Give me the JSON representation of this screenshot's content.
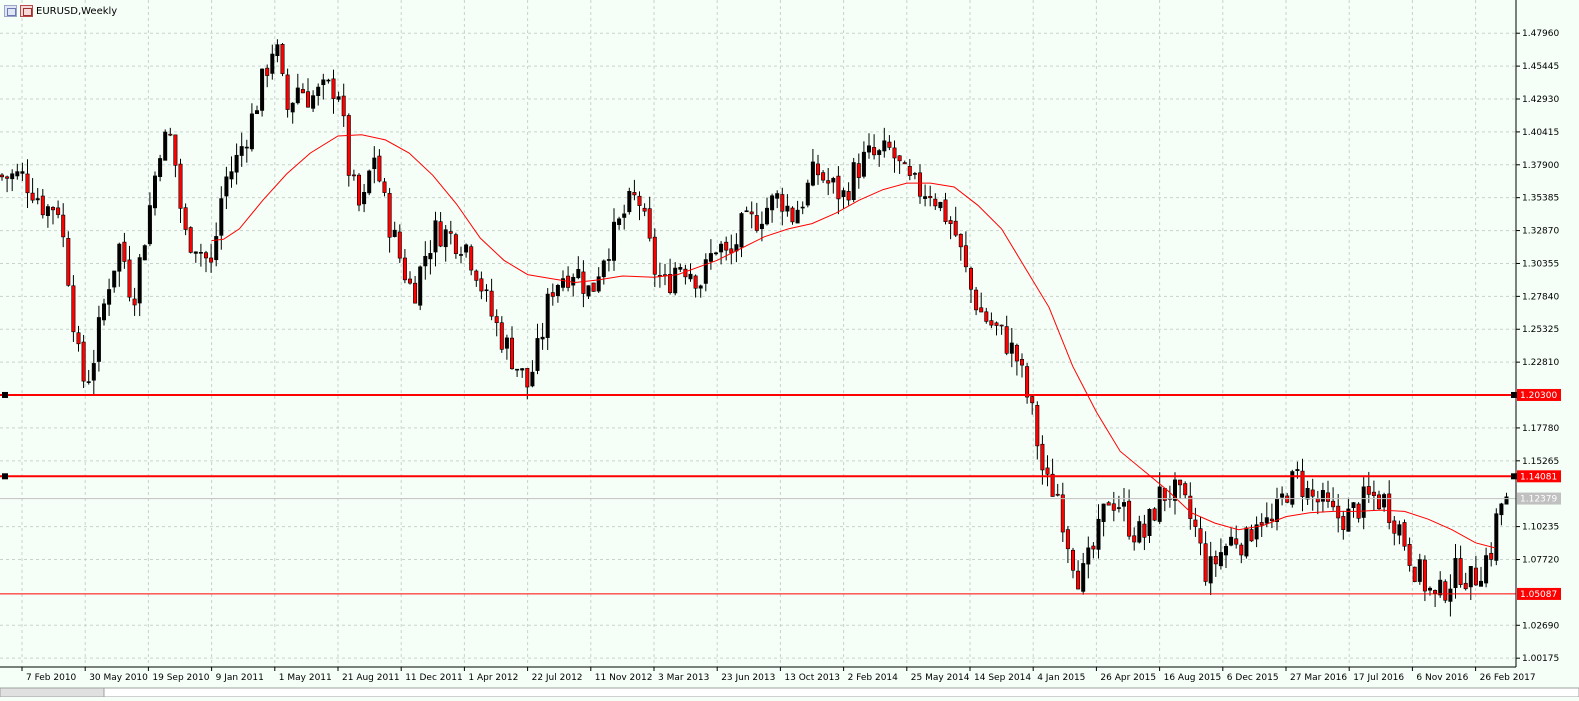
{
  "header": {
    "symbol_timeframe": "EURUSD,Weekly",
    "icons": [
      "chart-grid-icon",
      "chart-color-icon"
    ]
  },
  "chart_data": {
    "type": "candlestick",
    "title": "EURUSD,Weekly",
    "ylim": [
      0.995,
      1.505
    ],
    "y_ticks": [
      "1.47960",
      "1.45445",
      "1.42930",
      "1.40415",
      "1.37900",
      "1.35385",
      "1.32870",
      "1.30355",
      "1.27840",
      "1.25325",
      "1.22810",
      "1.20300",
      "1.17780",
      "1.15265",
      "1.14081",
      "1.12379",
      "1.10235",
      "1.07720",
      "1.05087",
      "1.02690",
      "1.00175"
    ],
    "x_ticks": [
      "7 Feb 2010",
      "30 May 2010",
      "19 Sep 2010",
      "9 Jan 2011",
      "1 May 2011",
      "21 Aug 2011",
      "11 Dec 2011",
      "1 Apr 2012",
      "22 Jul 2012",
      "11 Nov 2012",
      "3 Mar 2013",
      "23 Jun 2013",
      "13 Oct 2013",
      "2 Feb 2014",
      "25 May 2014",
      "14 Sep 2014",
      "4 Jan 2015",
      "26 Apr 2015",
      "16 Aug 2015",
      "6 Dec 2015",
      "27 Mar 2016",
      "17 Jul 2016",
      "6 Nov 2016",
      "26 Feb 2017"
    ],
    "horizontal_levels": [
      {
        "value": 1.203,
        "label": "1.20300",
        "color": "#ff0000",
        "selected": true
      },
      {
        "value": 1.14081,
        "label": "1.14081",
        "color": "#ff0000",
        "selected": true
      },
      {
        "value": 1.05087,
        "label": "1.05087",
        "color": "#ff0000",
        "selected": false
      }
    ],
    "current_price": {
      "value": 1.12379,
      "label": "1.12379",
      "color": "#c0c0c0"
    },
    "moving_average": {
      "color": "#ff0000",
      "points": [
        [
          "9 Jan 2011",
          1.321
        ],
        [
          "30 Jan 2011",
          1.322
        ],
        [
          "27 Feb 2011",
          1.33
        ],
        [
          "10 Apr 2011",
          1.352
        ],
        [
          "22 May 2011",
          1.372
        ],
        [
          "3 Jul 2011",
          1.388
        ],
        [
          "21 Aug 2011",
          1.401
        ],
        [
          "2 Oct 2011",
          1.402
        ],
        [
          "13 Nov 2011",
          1.398
        ],
        [
          "25 Dec 2011",
          1.388
        ],
        [
          "5 Feb 2012",
          1.371
        ],
        [
          "18 Mar 2012",
          1.349
        ],
        [
          "29 Apr 2012",
          1.323
        ],
        [
          "10 Jun 2012",
          1.306
        ],
        [
          "22 Jul 2012",
          1.295
        ],
        [
          "2 Sep 2012",
          1.292
        ],
        [
          "14 Oct 2012",
          1.289
        ],
        [
          "25 Nov 2012",
          1.291
        ],
        [
          "6 Jan 2013",
          1.294
        ],
        [
          "3 Mar 2013",
          1.293
        ],
        [
          "14 Apr 2013",
          1.295
        ],
        [
          "23 Jun 2013",
          1.306
        ],
        [
          "4 Aug 2013",
          1.315
        ],
        [
          "15 Sep 2013",
          1.324
        ],
        [
          "27 Oct 2013",
          1.33
        ],
        [
          "8 Dec 2013",
          1.334
        ],
        [
          "19 Jan 2014",
          1.342
        ],
        [
          "2 Mar 2014",
          1.352
        ],
        [
          "13 Apr 2014",
          1.36
        ],
        [
          "25 May 2014",
          1.365
        ],
        [
          "6 Jul 2014",
          1.365
        ],
        [
          "17 Aug 2014",
          1.362
        ],
        [
          "28 Sep 2014",
          1.348
        ],
        [
          "9 Nov 2014",
          1.33
        ],
        [
          "21 Dec 2014",
          1.3
        ],
        [
          "1 Feb 2015",
          1.27
        ],
        [
          "15 Mar 2015",
          1.225
        ],
        [
          "26 Apr 2015",
          1.19
        ],
        [
          "7 Jun 2015",
          1.16
        ],
        [
          "19 Jul 2015",
          1.145
        ],
        [
          "30 Aug 2015",
          1.13
        ],
        [
          "11 Oct 2015",
          1.113
        ],
        [
          "22 Nov 2015",
          1.105
        ],
        [
          "3 Jan 2016",
          1.1
        ],
        [
          "14 Feb 2016",
          1.103
        ],
        [
          "27 Mar 2016",
          1.11
        ],
        [
          "8 May 2016",
          1.113
        ],
        [
          "19 Jun 2016",
          1.114
        ],
        [
          "31 Jul 2016",
          1.114
        ],
        [
          "11 Sep 2016",
          1.115
        ],
        [
          "23 Oct 2016",
          1.114
        ],
        [
          "4 Dec 2016",
          1.108
        ],
        [
          "15 Jan 2017",
          1.1
        ],
        [
          "26 Feb 2017",
          1.09
        ],
        [
          "2 Apr 2017",
          1.086
        ]
      ]
    },
    "price_path": [
      [
        "7 Feb 2010",
        1.37
      ],
      [
        "28 Feb 2010",
        1.36
      ],
      [
        "21 Mar 2010",
        1.345
      ],
      [
        "11 Apr 2010",
        1.35
      ],
      [
        "2 May 2010",
        1.29
      ],
      [
        "16 May 2010",
        1.235
      ],
      [
        "30 May 2010",
        1.21
      ],
      [
        "13 Jun 2010",
        1.23
      ],
      [
        "27 Jun 2010",
        1.26
      ],
      [
        "11 Jul 2010",
        1.29
      ],
      [
        "1 Aug 2010",
        1.32
      ],
      [
        "22 Aug 2010",
        1.275
      ],
      [
        "19 Sep 2010",
        1.34
      ],
      [
        "10 Oct 2010",
        1.395
      ],
      [
        "31 Oct 2010",
        1.4
      ],
      [
        "21 Nov 2010",
        1.325
      ],
      [
        "12 Dec 2010",
        1.32
      ],
      [
        "9 Jan 2011",
        1.3
      ],
      [
        "30 Jan 2011",
        1.365
      ],
      [
        "20 Feb 2011",
        1.38
      ],
      [
        "20 Mar 2011",
        1.412
      ],
      [
        "1 May 2011",
        1.475
      ],
      [
        "22 May 2011",
        1.42
      ],
      [
        "12 Jun 2011",
        1.44
      ],
      [
        "3 Jul 2011",
        1.43
      ],
      [
        "21 Aug 2011",
        1.44
      ],
      [
        "11 Sep 2011",
        1.37
      ],
      [
        "2 Oct 2011",
        1.34
      ],
      [
        "23 Oct 2011",
        1.39
      ],
      [
        "13 Nov 2011",
        1.345
      ],
      [
        "11 Dec 2011",
        1.305
      ],
      [
        "1 Jan 2012",
        1.28
      ],
      [
        "22 Jan 2012",
        1.31
      ],
      [
        "12 Feb 2012",
        1.33
      ],
      [
        "4 Mar 2012",
        1.325
      ],
      [
        "1 Apr 2012",
        1.32
      ],
      [
        "22 Apr 2012",
        1.3
      ],
      [
        "13 May 2012",
        1.27
      ],
      [
        "3 Jun 2012",
        1.25
      ],
      [
        "22 Jul 2012",
        1.21
      ],
      [
        "12 Aug 2012",
        1.24
      ],
      [
        "2 Sep 2012",
        1.285
      ],
      [
        "23 Sep 2012",
        1.295
      ],
      [
        "14 Oct 2012",
        1.3
      ],
      [
        "11 Nov 2012",
        1.28
      ],
      [
        "2 Dec 2012",
        1.31
      ],
      [
        "23 Dec 2012",
        1.325
      ],
      [
        "13 Jan 2013",
        1.345
      ],
      [
        "3 Feb 2013",
        1.355
      ],
      [
        "3 Mar 2013",
        1.3
      ],
      [
        "24 Mar 2013",
        1.285
      ],
      [
        "14 Apr 2013",
        1.305
      ],
      [
        "5 May 2013",
        1.3
      ],
      [
        "26 May 2013",
        1.29
      ],
      [
        "23 Jun 2013",
        1.32
      ],
      [
        "14 Jul 2013",
        1.305
      ],
      [
        "4 Aug 2013",
        1.33
      ],
      [
        "25 Aug 2013",
        1.335
      ],
      [
        "15 Sep 2013",
        1.345
      ],
      [
        "13 Oct 2013",
        1.355
      ],
      [
        "3 Nov 2013",
        1.34
      ],
      [
        "24 Nov 2013",
        1.355
      ],
      [
        "15 Dec 2013",
        1.375
      ],
      [
        "5 Jan 2014",
        1.365
      ],
      [
        "2 Feb 2014",
        1.355
      ],
      [
        "23 Feb 2014",
        1.375
      ],
      [
        "16 Mar 2014",
        1.385
      ],
      [
        "6 Apr 2014",
        1.385
      ],
      [
        "27 Apr 2014",
        1.39
      ],
      [
        "25 May 2014",
        1.365
      ],
      [
        "15 Jun 2014",
        1.36
      ],
      [
        "6 Jul 2014",
        1.36
      ],
      [
        "27 Jul 2014",
        1.345
      ],
      [
        "17 Aug 2014",
        1.33
      ],
      [
        "14 Sep 2014",
        1.285
      ],
      [
        "5 Oct 2014",
        1.265
      ],
      [
        "26 Oct 2014",
        1.255
      ],
      [
        "16 Nov 2014",
        1.245
      ],
      [
        "7 Dec 2014",
        1.23
      ],
      [
        "4 Jan 2015",
        1.185
      ],
      [
        "25 Jan 2015",
        1.135
      ],
      [
        "15 Feb 2015",
        1.13
      ],
      [
        "8 Mar 2015",
        1.09
      ],
      [
        "29 Mar 2015",
        1.06
      ],
      [
        "26 Apr 2015",
        1.09
      ],
      [
        "17 May 2015",
        1.125
      ],
      [
        "7 Jun 2015",
        1.12
      ],
      [
        "28 Jun 2015",
        1.1
      ],
      [
        "19 Jul 2015",
        1.095
      ],
      [
        "16 Aug 2015",
        1.125
      ],
      [
        "6 Sep 2015",
        1.13
      ],
      [
        "27 Sep 2015",
        1.12
      ],
      [
        "18 Oct 2015",
        1.1
      ],
      [
        "8 Nov 2015",
        1.065
      ],
      [
        "6 Dec 2015",
        1.085
      ],
      [
        "27 Dec 2015",
        1.095
      ],
      [
        "17 Jan 2016",
        1.09
      ],
      [
        "7 Feb 2016",
        1.115
      ],
      [
        "28 Feb 2016",
        1.1
      ],
      [
        "27 Mar 2016",
        1.13
      ],
      [
        "17 Apr 2016",
        1.14
      ],
      [
        "8 May 2016",
        1.125
      ],
      [
        "29 May 2016",
        1.12
      ],
      [
        "19 Jun 2016",
        1.11
      ],
      [
        "17 Jul 2016",
        1.11
      ],
      [
        "7 Aug 2016",
        1.12
      ],
      [
        "28 Aug 2016",
        1.125
      ],
      [
        "18 Sep 2016",
        1.122
      ],
      [
        "16 Oct 2016",
        1.1
      ],
      [
        "6 Nov 2016",
        1.075
      ],
      [
        "27 Nov 2016",
        1.06
      ],
      [
        "18 Dec 2016",
        1.045
      ],
      [
        "8 Jan 2017",
        1.06
      ],
      [
        "29 Jan 2017",
        1.07
      ],
      [
        "19 Feb 2017",
        1.06
      ],
      [
        "12 Mar 2017",
        1.075
      ],
      [
        "26 Mar 2017",
        1.085
      ],
      [
        "9 Apr 2017",
        1.12
      ]
    ]
  }
}
